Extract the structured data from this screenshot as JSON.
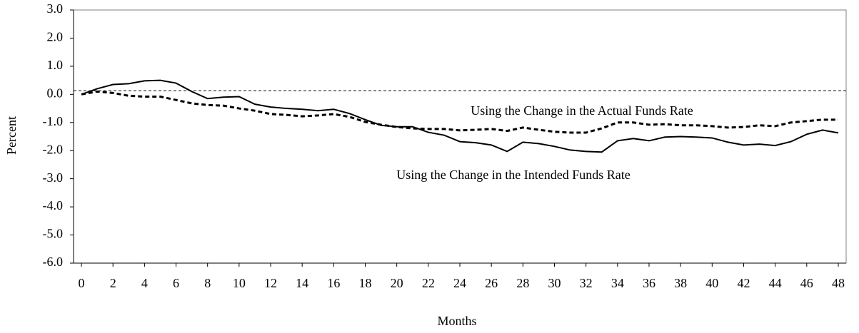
{
  "chart_data": {
    "type": "line",
    "x_label": "Months",
    "y_label": "Percent",
    "x": [
      0,
      1,
      2,
      3,
      4,
      5,
      6,
      7,
      8,
      9,
      10,
      11,
      12,
      13,
      14,
      15,
      16,
      17,
      18,
      19,
      20,
      21,
      22,
      23,
      24,
      25,
      26,
      27,
      28,
      29,
      30,
      31,
      32,
      33,
      34,
      35,
      36,
      37,
      38,
      39,
      40,
      41,
      42,
      43,
      44,
      45,
      46,
      47,
      48
    ],
    "series": [
      {
        "name": "Using the Change in the Actual Funds Rate",
        "color": "#000000",
        "dash": true,
        "values": [
          0.0,
          0.1,
          0.05,
          -0.05,
          -0.08,
          -0.08,
          -0.2,
          -0.32,
          -0.38,
          -0.4,
          -0.5,
          -0.58,
          -0.7,
          -0.73,
          -0.78,
          -0.75,
          -0.7,
          -0.8,
          -0.98,
          -1.08,
          -1.16,
          -1.21,
          -1.23,
          -1.23,
          -1.28,
          -1.26,
          -1.23,
          -1.3,
          -1.18,
          -1.26,
          -1.33,
          -1.36,
          -1.36,
          -1.21,
          -1.0,
          -1.0,
          -1.08,
          -1.06,
          -1.1,
          -1.1,
          -1.13,
          -1.18,
          -1.16,
          -1.1,
          -1.13,
          -1.0,
          -0.95,
          -0.9,
          -0.9
        ]
      },
      {
        "name": "Using the Change in the Intended Funds Rate",
        "color": "#000000",
        "dash": false,
        "values": [
          0.0,
          0.2,
          0.35,
          0.38,
          0.48,
          0.5,
          0.4,
          0.1,
          -0.15,
          -0.1,
          -0.08,
          -0.35,
          -0.45,
          -0.5,
          -0.53,
          -0.58,
          -0.53,
          -0.68,
          -0.9,
          -1.1,
          -1.15,
          -1.15,
          -1.35,
          -1.45,
          -1.68,
          -1.72,
          -1.8,
          -2.03,
          -1.7,
          -1.75,
          -1.85,
          -1.98,
          -2.03,
          -2.05,
          -1.65,
          -1.57,
          -1.65,
          -1.52,
          -1.5,
          -1.52,
          -1.55,
          -1.7,
          -1.8,
          -1.77,
          -1.82,
          -1.68,
          -1.42,
          -1.27,
          -1.37
        ]
      }
    ],
    "reference_line": 0.13,
    "xlim": [
      -0.5,
      48.5
    ],
    "xticks": [
      0,
      2,
      4,
      6,
      8,
      10,
      12,
      14,
      16,
      18,
      20,
      22,
      24,
      26,
      28,
      30,
      32,
      34,
      36,
      38,
      40,
      42,
      44,
      46,
      48
    ],
    "ylim": [
      -6,
      3
    ],
    "yticks": [
      {
        "value": -6,
        "label": "-6.0"
      },
      {
        "value": -5,
        "label": "-5.0"
      },
      {
        "value": -4,
        "label": "-4.0"
      },
      {
        "value": -3,
        "label": "-3.0"
      },
      {
        "value": -2,
        "label": "-2.0"
      },
      {
        "value": -1,
        "label": "-1.0"
      },
      {
        "value": 0,
        "label": "0.0"
      },
      {
        "value": 1,
        "label": "1.0"
      },
      {
        "value": 2,
        "label": "2.0"
      },
      {
        "value": 3,
        "label": "3.0"
      }
    ]
  }
}
